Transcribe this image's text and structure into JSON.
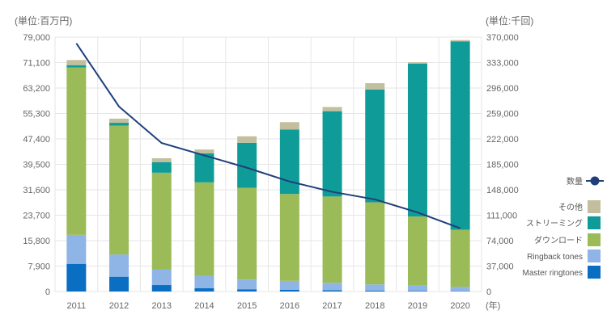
{
  "chart_data": {
    "type": "bar",
    "stacked": true,
    "categories": [
      "2011",
      "2012",
      "2013",
      "2014",
      "2015",
      "2016",
      "2017",
      "2018",
      "2019",
      "2020"
    ],
    "y_left": {
      "label": "(単位:百万円)",
      "ylim": [
        0,
        79000
      ],
      "ticks": [
        "0",
        "7,900",
        "15,800",
        "23,700",
        "31,600",
        "39,500",
        "47,400",
        "55,300",
        "63,200",
        "71,100",
        "79,000"
      ]
    },
    "y_right": {
      "label": "(単位:千回)",
      "ylim": [
        0,
        370000
      ],
      "ticks": [
        "0",
        "37,000",
        "74,000",
        "111,000",
        "148,000",
        "185,000",
        "222,000",
        "259,000",
        "296,000",
        "333,000",
        "370,000"
      ]
    },
    "x_unit": "(年)",
    "grid": true,
    "legend_position": "right",
    "series": [
      {
        "name": "Master ringtones",
        "color": "#0a6fc2",
        "values": [
          8600,
          4600,
          2000,
          1000,
          700,
          500,
          400,
          300,
          200,
          100
        ]
      },
      {
        "name": "Ringback tones",
        "color": "#8fb4e6",
        "values": [
          9000,
          6900,
          4900,
          3900,
          3000,
          2800,
          2300,
          1900,
          1600,
          1300
        ]
      },
      {
        "name": "ダウンロード",
        "color": "#9bbb59",
        "values": [
          52000,
          40000,
          30000,
          29000,
          28500,
          27000,
          26800,
          25500,
          21500,
          17800
        ]
      },
      {
        "name": "ストリーミング",
        "color": "#0f9c98",
        "values": [
          700,
          900,
          3300,
          9000,
          14000,
          20000,
          26500,
          35000,
          47500,
          58500
        ]
      },
      {
        "name": "その他",
        "color": "#c3bf9e",
        "values": [
          1600,
          1300,
          1200,
          1200,
          2000,
          2300,
          1300,
          2000,
          400,
          400
        ]
      }
    ],
    "line_series": {
      "name": "数量",
      "color": "#1f3f7a",
      "axis": "right",
      "values": [
        361000,
        269000,
        216000,
        198000,
        180000,
        160000,
        145000,
        134000,
        115000,
        92000
      ]
    }
  }
}
